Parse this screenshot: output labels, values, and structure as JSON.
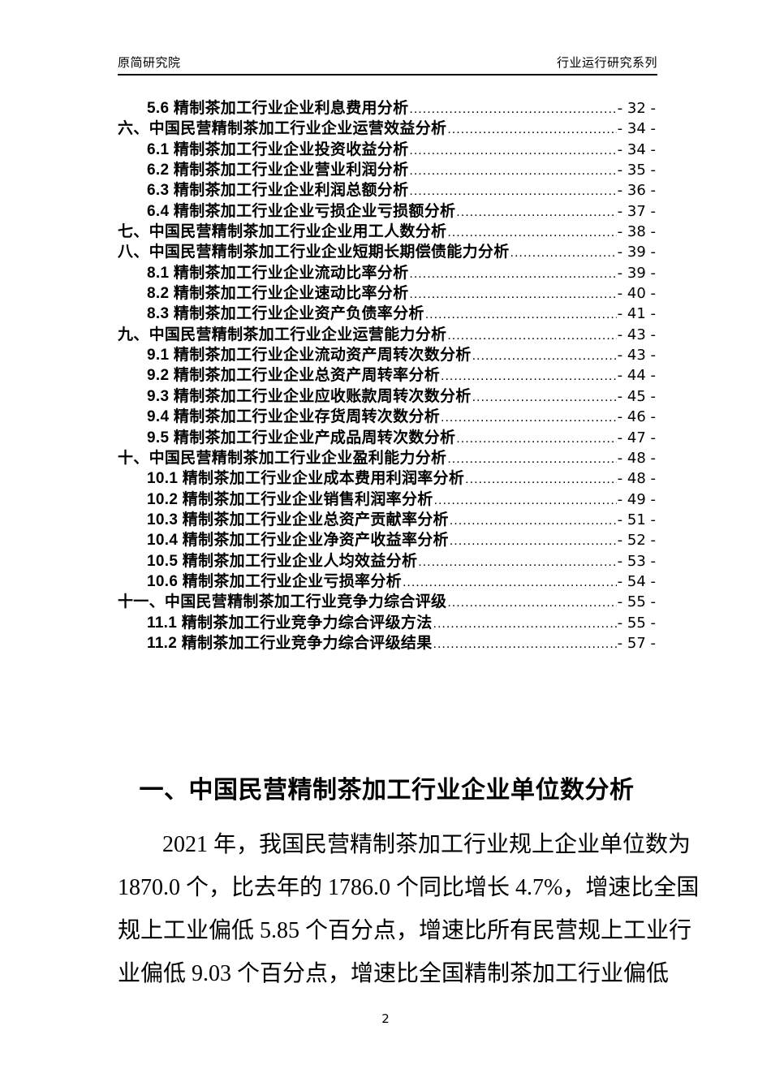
{
  "header": {
    "left": "原简研究院",
    "right": "行业运行研究系列"
  },
  "toc": {
    "items": [
      {
        "label": "5.6 精制茶加工行业企业利息费用分析",
        "page": "- 32 -",
        "level": "sub"
      },
      {
        "label": "六、中国民营精制茶加工行业企业运营效益分析",
        "page": "- 34 -",
        "level": "chapter"
      },
      {
        "label": "6.1 精制茶加工行业企业投资收益分析",
        "page": "- 34 -",
        "level": "sub"
      },
      {
        "label": "6.2 精制茶加工行业企业营业利润分析",
        "page": "- 35 -",
        "level": "sub"
      },
      {
        "label": "6.3 精制茶加工行业企业利润总额分析",
        "page": "- 36 -",
        "level": "sub"
      },
      {
        "label": "6.4 精制茶加工行业企业亏损企业亏损额分析",
        "page": "- 37 -",
        "level": "sub"
      },
      {
        "label": "七、中国民营精制茶加工行业企业用工人数分析",
        "page": "- 38 -",
        "level": "chapter"
      },
      {
        "label": "八、中国民营精制茶加工行业企业短期长期偿债能力分析",
        "page": "- 39 -",
        "level": "chapter"
      },
      {
        "label": "8.1 精制茶加工行业企业流动比率分析",
        "page": "- 39 -",
        "level": "sub"
      },
      {
        "label": "8.2 精制茶加工行业企业速动比率分析",
        "page": "- 40 -",
        "level": "sub"
      },
      {
        "label": "8.3 精制茶加工行业企业资产负债率分析",
        "page": "- 41 -",
        "level": "sub"
      },
      {
        "label": "九、中国民营精制茶加工行业企业运营能力分析",
        "page": "- 43 -",
        "level": "chapter"
      },
      {
        "label": "9.1 精制茶加工行业企业流动资产周转次数分析",
        "page": "- 43 -",
        "level": "sub"
      },
      {
        "label": "9.2 精制茶加工行业企业总资产周转率分析",
        "page": "- 44 -",
        "level": "sub"
      },
      {
        "label": "9.3 精制茶加工行业企业应收账款周转次数分析",
        "page": "- 45 -",
        "level": "sub"
      },
      {
        "label": "9.4 精制茶加工行业企业存货周转次数分析",
        "page": "- 46 -",
        "level": "sub"
      },
      {
        "label": "9.5 精制茶加工行业企业产成品周转次数分析",
        "page": "- 47 -",
        "level": "sub"
      },
      {
        "label": "十、中国民营精制茶加工行业企业盈利能力分析",
        "page": "- 48 -",
        "level": "chapter"
      },
      {
        "label": "10.1 精制茶加工行业企业成本费用利润率分析",
        "page": "- 48 -",
        "level": "sub"
      },
      {
        "label": "10.2 精制茶加工行业企业销售利润率分析",
        "page": "- 49 -",
        "level": "sub"
      },
      {
        "label": "10.3 精制茶加工行业企业总资产贡献率分析",
        "page": "- 51 -",
        "level": "sub"
      },
      {
        "label": "10.4 精制茶加工行业企业净资产收益率分析",
        "page": "- 52 -",
        "level": "sub"
      },
      {
        "label": "10.5 精制茶加工行业企业人均效益分析",
        "page": "- 53 -",
        "level": "sub"
      },
      {
        "label": "10.6 精制茶加工行业企业亏损率分析",
        "page": "- 54 -",
        "level": "sub"
      },
      {
        "label": "十一、中国民营精制茶加工行业竞争力综合评级",
        "page": "- 55 -",
        "level": "chapter"
      },
      {
        "label": "11.1 精制茶加工行业竞争力综合评级方法",
        "page": "- 55 -",
        "level": "sub"
      },
      {
        "label": "11.2 精制茶加工行业竞争力综合评级结果",
        "page": "- 57 -",
        "level": "sub"
      }
    ]
  },
  "section": {
    "title": "一、中国民营精制茶加工行业企业单位数分析"
  },
  "paragraph": {
    "lines": [
      "2021 年，我国民营精制茶加工行业规上企业单位数为",
      "1870.0 个，比去年的 1786.0 个同比增长 4.7%，增速比全国",
      "规上工业偏低 5.85 个百分点，增速比所有民营规上工业行",
      "业偏低 9.03 个百分点，增速比全国精制茶加工行业偏低"
    ]
  },
  "footer": {
    "page_number": "2"
  }
}
